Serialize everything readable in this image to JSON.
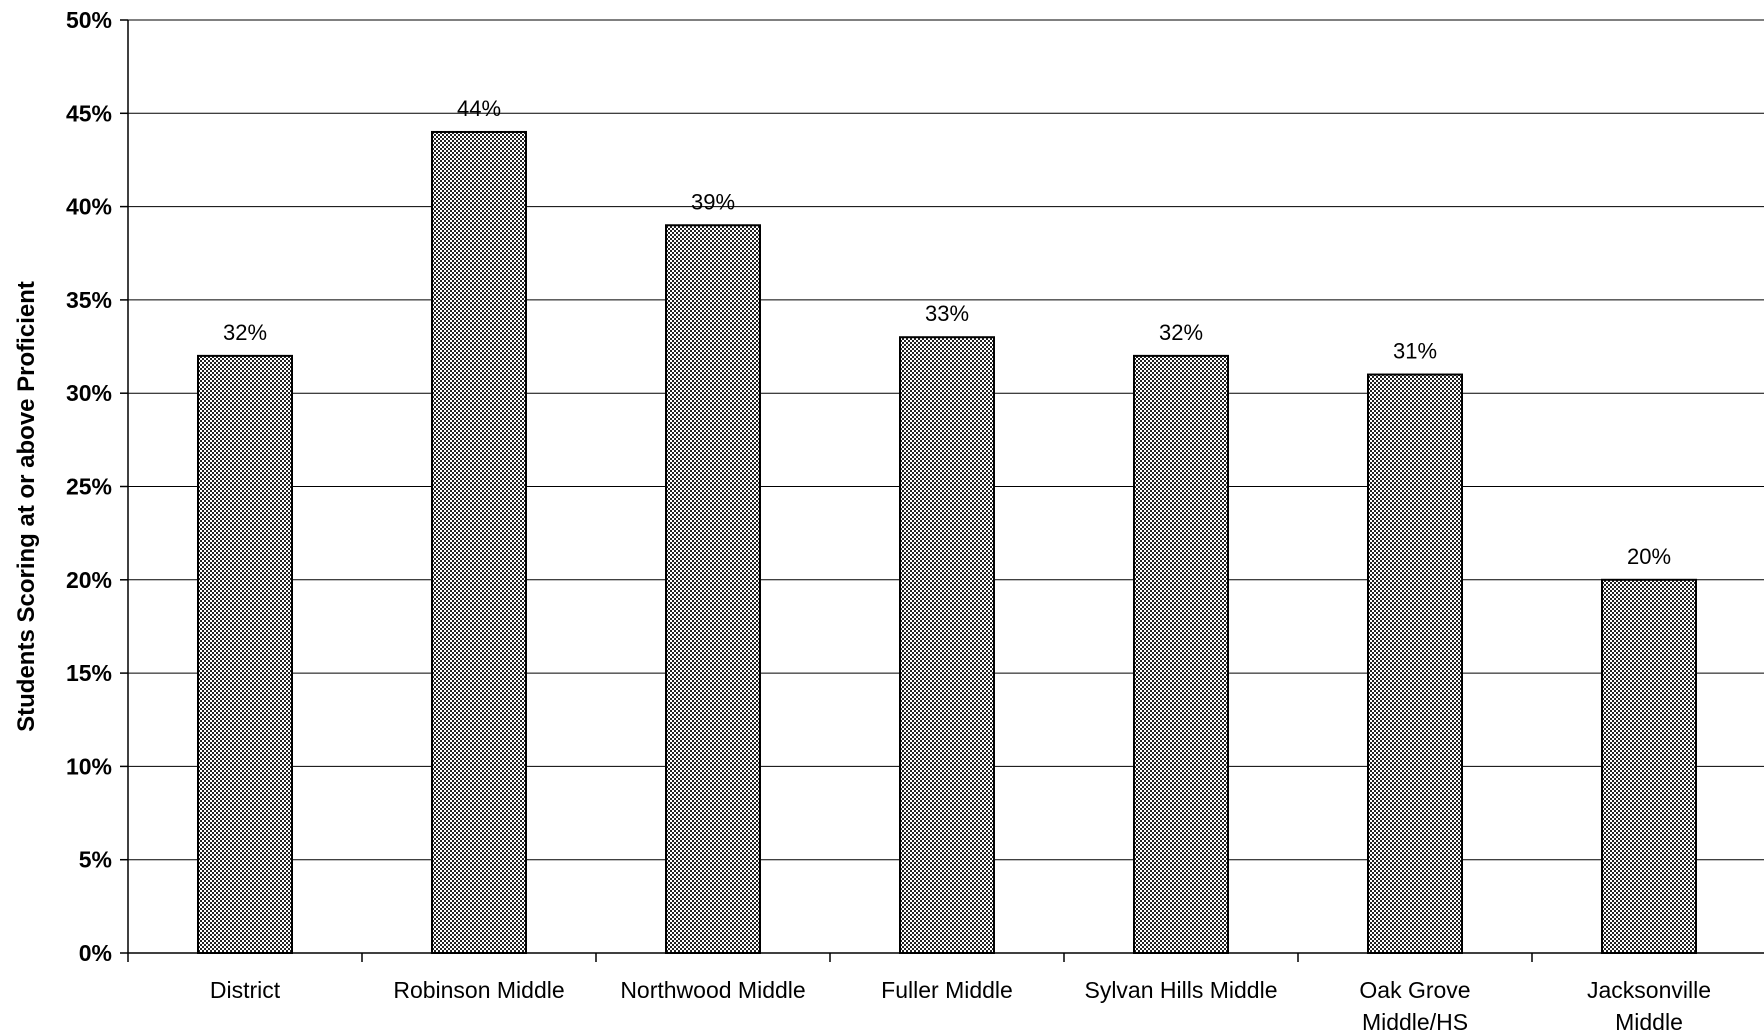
{
  "chart_data": {
    "type": "bar",
    "title": "",
    "xlabel": "",
    "ylabel": "Students Scoring at or above Proficient",
    "categories": [
      [
        "District"
      ],
      [
        "Robinson Middle"
      ],
      [
        "Northwood Middle"
      ],
      [
        "Fuller Middle"
      ],
      [
        "Sylvan Hills Middle"
      ],
      [
        "Oak Grove",
        "Middle/HS"
      ],
      [
        "Jacksonville",
        "Middle"
      ]
    ],
    "values": [
      32,
      44,
      39,
      33,
      32,
      31,
      20
    ],
    "data_labels": [
      "32%",
      "44%",
      "39%",
      "33%",
      "32%",
      "31%",
      "20%"
    ],
    "ylim": [
      0,
      50
    ],
    "yticks": [
      0,
      5,
      10,
      15,
      20,
      25,
      30,
      35,
      40,
      45,
      50
    ],
    "ytick_labels": [
      "0%",
      "5%",
      "10%",
      "15%",
      "20%",
      "25%",
      "30%",
      "35%",
      "40%",
      "45%",
      "50%"
    ],
    "grid": true,
    "legend": "none",
    "bar_fill": "#555555",
    "bar_pattern": "crosshatch"
  }
}
